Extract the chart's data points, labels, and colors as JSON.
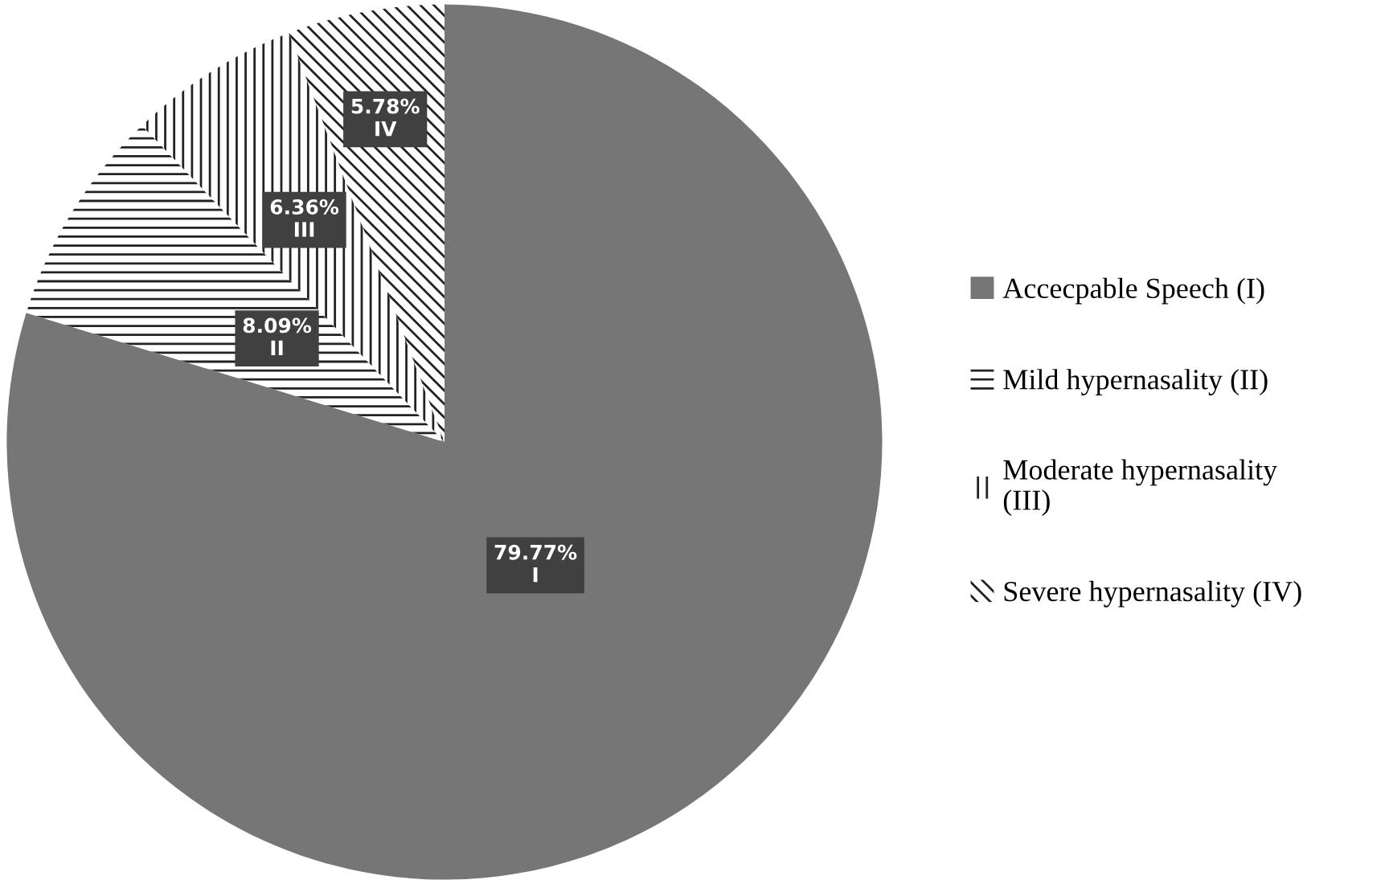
{
  "chart_data": {
    "type": "pie",
    "categories": [
      "Accecpable Speech (I)",
      "Mild hypernasality (II)",
      "Moderate hypernasality\n(III)",
      "Severe hypernasality (IV)"
    ],
    "values": [
      79.77,
      8.09,
      6.36,
      5.78
    ],
    "value_labels": [
      "79.77%\nI",
      "8.09%\nII",
      "6.36%\nIII",
      "5.78%\nIV"
    ],
    "colors": [
      "#767676",
      "#ffffff",
      "#ffffff",
      "#ffffff"
    ],
    "legend": "right"
  }
}
